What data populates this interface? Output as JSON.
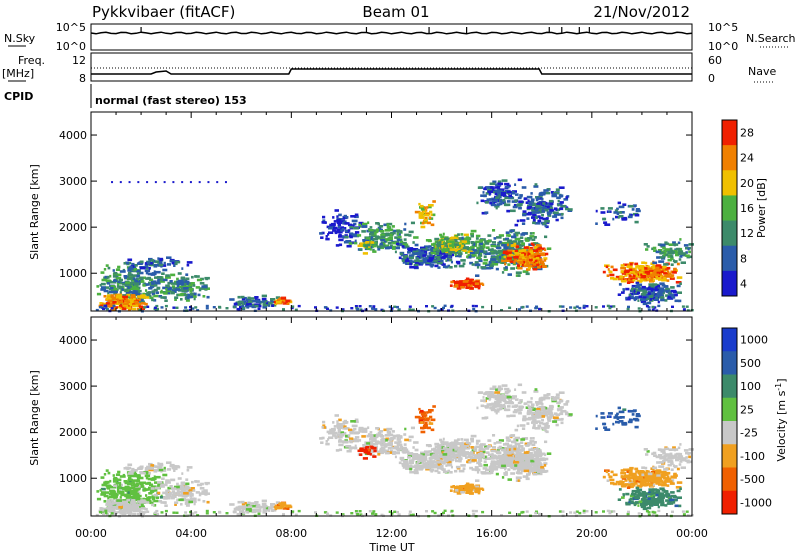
{
  "header": {
    "title": "Pykkvibaer (fitACF)",
    "beam": "Beam 01",
    "date": "21/Nov/2012"
  },
  "nsky_panel": {
    "left_label": "N.Sky",
    "right_label": "N.Search",
    "left_ticks": [
      "10^5",
      "10^0"
    ],
    "right_ticks": [
      "10^5",
      "10^0"
    ]
  },
  "freq_panel": {
    "left_label_1": "Freq.",
    "left_label_2": "[MHz]",
    "right_label": "Nave",
    "left_ticks": [
      "12",
      "8"
    ],
    "right_ticks": [
      "60",
      "0"
    ]
  },
  "cpid": {
    "label": "CPID",
    "mode": "normal (fast stereo) 153"
  },
  "colors": {
    "power": [
      "#1a1acc",
      "#2a5caa",
      "#3c8a6a",
      "#4cb040",
      "#f0c000",
      "#f08000",
      "#f02000"
    ],
    "velocity": [
      "#f02000",
      "#f06000",
      "#f0a020",
      "#c8c8c8",
      "#60c040",
      "#3c8a6a",
      "#2a5caa",
      "#1a3ccc"
    ]
  },
  "chart_data": [
    {
      "type": "heatmap",
      "panel": "power",
      "ylabel": "Slant Range [km]",
      "yticks": [
        1000,
        2000,
        3000,
        4000
      ],
      "ylim": [
        180,
        4500
      ],
      "xlim": [
        0,
        24
      ],
      "colorbar_label": "Power [dB]",
      "colorbar_ticks": [
        "4",
        "8",
        "12",
        "16",
        "20",
        "24",
        "28"
      ]
    },
    {
      "type": "heatmap",
      "panel": "velocity",
      "ylabel": "Slant Range [km]",
      "yticks": [
        1000,
        2000,
        3000,
        4000
      ],
      "ylim": [
        180,
        4500
      ],
      "xlim": [
        0,
        24
      ],
      "colorbar_label": "Velocity [m s",
      "colorbar_label_sup": "-1",
      "colorbar_label_end": "]",
      "colorbar_ticks": [
        "1000",
        "500",
        "100",
        "25",
        "-25",
        "-100",
        "-500",
        "-1000"
      ]
    }
  ],
  "xaxis": {
    "label": "Time UT",
    "ticks": [
      "00:00",
      "04:00",
      "08:00",
      "12:00",
      "16:00",
      "20:00",
      "00:00"
    ],
    "tick_hours": [
      0,
      4,
      8,
      12,
      16,
      20,
      24
    ]
  }
}
